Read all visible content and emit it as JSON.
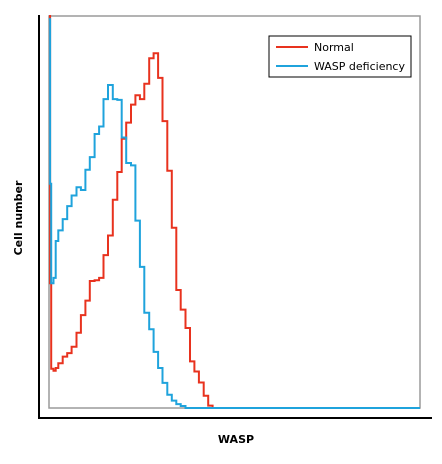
{
  "chart_data": {
    "type": "line",
    "xlabel": "WASP",
    "ylabel": "Cell number",
    "xlim": [
      0,
      100
    ],
    "ylim": [
      0,
      100
    ],
    "ticks": false,
    "legend_position": "top-right",
    "series": [
      {
        "name": "Normal",
        "color": "#e8321e",
        "x": [
          0.0,
          0.3,
          0.6,
          1.2,
          1.8,
          2.5,
          3.7,
          4.9,
          6.1,
          7.4,
          8.6,
          9.8,
          11.0,
          12.3,
          13.5,
          14.7,
          15.9,
          17.2,
          18.4,
          19.6,
          20.8,
          22.1,
          23.3,
          24.5,
          25.7,
          27.0,
          28.2,
          29.4,
          30.6,
          31.9,
          33.1,
          34.3,
          35.5,
          36.8,
          38.0,
          39.2,
          40.4,
          41.7,
          42.9,
          44.1,
          45.3,
          46.6,
          47.8,
          49.0,
          50.0,
          60.0,
          80.0,
          100.0
        ],
        "y": [
          100.0,
          31.8,
          10.0,
          9.5,
          10.2,
          11.4,
          13.1,
          14.0,
          15.6,
          19.2,
          23.7,
          27.4,
          32.4,
          32.6,
          33.2,
          39.0,
          44.0,
          53.1,
          60.2,
          68.7,
          72.8,
          77.4,
          79.8,
          78.8,
          82.7,
          89.2,
          90.5,
          84.2,
          73.2,
          60.5,
          46.0,
          30.1,
          25.1,
          20.4,
          11.9,
          9.3,
          6.5,
          3.1,
          0.6,
          0.0,
          0.0,
          0.0,
          0.0,
          0.0,
          0.0,
          0.0,
          0.0,
          0.0
        ]
      },
      {
        "name": "WASP deficiency",
        "color": "#1fa3dc",
        "x": [
          0.0,
          0.3,
          0.6,
          1.2,
          1.8,
          2.5,
          3.7,
          4.9,
          6.1,
          7.4,
          8.6,
          9.8,
          11.0,
          12.3,
          13.5,
          14.7,
          15.9,
          17.2,
          18.4,
          19.6,
          20.8,
          22.1,
          23.3,
          24.5,
          25.7,
          27.0,
          28.2,
          29.4,
          30.6,
          31.9,
          33.1,
          34.3,
          35.5,
          36.8,
          38.0,
          39.2,
          40.4,
          41.7,
          42.9,
          50.0,
          60.0,
          80.0,
          100.0
        ],
        "y": [
          99.2,
          57.2,
          31.8,
          33.2,
          42.6,
          45.3,
          48.2,
          51.5,
          54.2,
          56.3,
          55.6,
          60.8,
          64.0,
          69.9,
          71.8,
          78.8,
          82.4,
          78.8,
          78.6,
          69.0,
          62.5,
          61.9,
          47.8,
          36.0,
          24.3,
          20.1,
          14.3,
          10.2,
          6.4,
          3.4,
          1.9,
          1.0,
          0.5,
          0.0,
          0.0,
          0.0,
          0.0,
          0.0,
          0.0,
          0.0,
          0.0,
          0.0,
          0.0
        ]
      }
    ]
  }
}
